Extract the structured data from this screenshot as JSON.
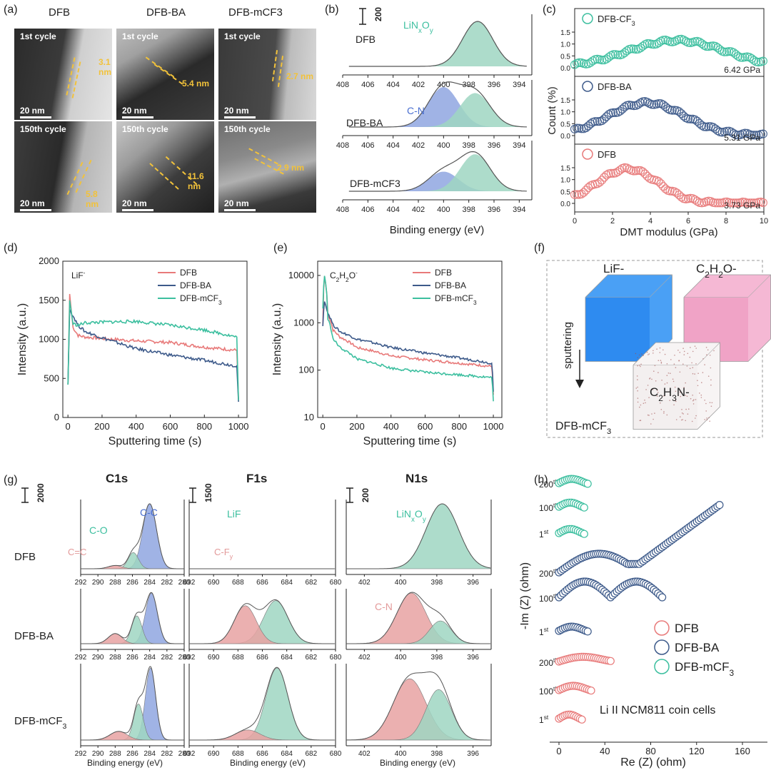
{
  "panel_labels": {
    "a": "(a)",
    "b": "(b)",
    "c": "(c)",
    "d": "(d)",
    "e": "(e)",
    "f": "(f)",
    "g": "(g)",
    "h": "(h)"
  },
  "colors": {
    "dfb": "#e87a7a",
    "dfb_ba": "#3d5a8a",
    "dfb_mcf3": "#3cbf9f",
    "teal_fill": "#9fd6c2",
    "blue_fill": "#8fa6e0",
    "red_fill": "#e8a2a2",
    "gold": "#f2c23a"
  },
  "panel_a": {
    "columns": [
      "DFB",
      "DFB-BA",
      "DFB-mCF3"
    ],
    "row1_label": "1st cycle",
    "row2_label": "150th cycle",
    "row1_thickness": [
      "3.1 nm",
      "5.4 nm",
      "2.7 nm"
    ],
    "row2_thickness": [
      "5.8 nm",
      "11.6 nm",
      "2.9 nm"
    ],
    "scale": "20 nm"
  },
  "panel_b": {
    "xlabel": "Binding energy (eV)",
    "scale_label": "200",
    "ticks": [
      "408",
      "406",
      "404",
      "402",
      "400",
      "398",
      "396",
      "394"
    ],
    "samples": [
      {
        "name": "DFB",
        "peaks": [
          {
            "label": "LiNxOy",
            "center": 397.3,
            "height": 1.0
          }
        ]
      },
      {
        "name": "DFB-BA",
        "peaks": [
          {
            "label": "C-N",
            "center": 400.0,
            "height": 1.0
          },
          {
            "label": "",
            "center": 397.5,
            "height": 0.85
          }
        ]
      },
      {
        "name": "DFB-mCF3",
        "peaks": [
          {
            "label": "",
            "center": 400.0,
            "height": 0.45
          },
          {
            "label": "",
            "center": 397.5,
            "height": 0.85
          }
        ]
      }
    ]
  },
  "panel_c": {
    "xlabel": "DMT modulus (GPa)",
    "ylabel": "Count (%)",
    "xticks": [
      "0",
      "2",
      "4",
      "6",
      "8",
      "10"
    ],
    "yticks": [
      "0.0",
      "0.5",
      "1.0",
      "1.5"
    ],
    "series": [
      {
        "name": "DFB-CF3",
        "value": "6.42 GPa",
        "peak_x": 5.4,
        "peak_y": 1.15,
        "width": 2.6
      },
      {
        "name": "DFB-BA",
        "value": "5.31 GPa",
        "peak_x": 3.8,
        "peak_y": 1.38,
        "width": 2.0
      },
      {
        "name": "DFB",
        "value": "3.73 GPa",
        "peak_x": 2.8,
        "peak_y": 1.45,
        "width": 1.6
      }
    ]
  },
  "chart_data": [
    {
      "type": "line",
      "panel": "d",
      "species": "LiF-",
      "xlabel": "Sputtering time (s)",
      "ylabel": "Intensity (a.u.)",
      "xlim": [
        -30,
        1050
      ],
      "ylim": [
        0,
        2000
      ],
      "xticks": [
        "0",
        "200",
        "400",
        "600",
        "800",
        "1000"
      ],
      "yticks": [
        "0",
        "500",
        "1000",
        "1500",
        "2000"
      ],
      "series": [
        {
          "name": "DFB",
          "x": [
            0,
            10,
            30,
            60,
            100,
            200,
            400,
            600,
            800,
            990,
            1000
          ],
          "y": [
            420,
            1580,
            1150,
            1050,
            1030,
            1010,
            980,
            960,
            900,
            860,
            230
          ]
        },
        {
          "name": "DFB-BA",
          "x": [
            0,
            10,
            30,
            60,
            100,
            200,
            400,
            600,
            800,
            990,
            1000
          ],
          "y": [
            420,
            1380,
            1300,
            1180,
            1100,
            1020,
            880,
            800,
            730,
            660,
            200
          ]
        },
        {
          "name": "DFB-mCF3",
          "x": [
            0,
            10,
            30,
            60,
            100,
            200,
            400,
            600,
            800,
            990,
            1000
          ],
          "y": [
            420,
            1500,
            1200,
            1180,
            1210,
            1220,
            1230,
            1180,
            1120,
            1030,
            220
          ]
        }
      ]
    },
    {
      "type": "line",
      "panel": "e",
      "species": "C2H2O-",
      "xlabel": "Sputtering time (s)",
      "ylabel": "Intensity (a.u.)",
      "yscale": "log",
      "xlim": [
        -30,
        1050
      ],
      "ylim": [
        10,
        20000
      ],
      "xticks": [
        "0",
        "200",
        "400",
        "600",
        "800",
        "1000"
      ],
      "yticks": [
        "10",
        "100",
        "1000",
        "10000"
      ],
      "series": [
        {
          "name": "DFB",
          "x": [
            0,
            10,
            30,
            60,
            100,
            200,
            400,
            600,
            800,
            990,
            1000
          ],
          "y": [
            900,
            9500,
            1500,
            700,
            500,
            300,
            200,
            165,
            140,
            120,
            30
          ]
        },
        {
          "name": "DFB-BA",
          "x": [
            0,
            10,
            30,
            60,
            100,
            200,
            400,
            600,
            800,
            990,
            1000
          ],
          "y": [
            850,
            2800,
            1600,
            900,
            650,
            450,
            300,
            230,
            180,
            140,
            35
          ]
        },
        {
          "name": "DFB-mCF3",
          "x": [
            0,
            10,
            30,
            60,
            100,
            200,
            400,
            600,
            800,
            990,
            1000
          ],
          "y": [
            2000,
            9800,
            1200,
            450,
            300,
            170,
            110,
            90,
            80,
            70,
            22
          ]
        }
      ]
    },
    {
      "type": "scatter",
      "panel": "h",
      "xlabel": "Re (Z) (ohm)",
      "ylabel": "-Im (Z) (ohm)",
      "xticks": [
        "0",
        "40",
        "80",
        "120",
        "160"
      ],
      "note": "Li II NCM811 coin cells",
      "legend": [
        "DFB",
        "DFB-BA",
        "DFB-mCF3"
      ],
      "cycle_labels": [
        "200th",
        "100th",
        "1st",
        "200th",
        "100th",
        "1st",
        "200th",
        "100th",
        "1st"
      ]
    }
  ],
  "panel_f": {
    "cube_labels": [
      "LiF-",
      "C2H2O-",
      "C2H3N-"
    ],
    "arrow_label": "sputtering",
    "sample": "DFB-mCF3"
  },
  "panel_g": {
    "headers": [
      "C1s",
      "F1s",
      "N1s"
    ],
    "scales": [
      "2000",
      "1500",
      "200"
    ],
    "xlabel": "Binding energy (eV)",
    "rows": [
      "DFB",
      "DFB-BA",
      "DFB-mCF3"
    ],
    "c1s_ticks": [
      "292",
      "290",
      "288",
      "286",
      "284",
      "282",
      "280"
    ],
    "f1s_ticks": [
      "692",
      "690",
      "688",
      "686",
      "684",
      "682",
      "680"
    ],
    "n1s_ticks": [
      "402",
      "400",
      "398",
      "396"
    ],
    "c1s_labels": [
      "C-C",
      "C-O",
      "C=C"
    ],
    "f1s_labels": [
      "LiF",
      "C-Fy"
    ],
    "n1s_labels": [
      "LiNxOy",
      "C-N"
    ]
  }
}
